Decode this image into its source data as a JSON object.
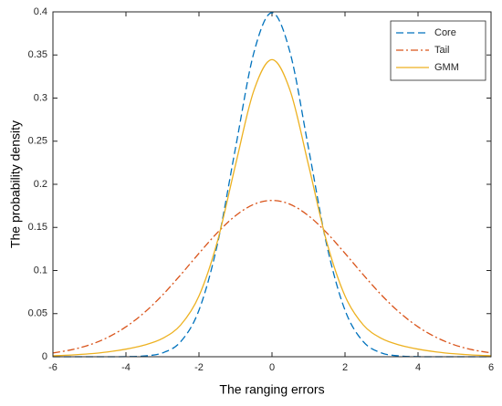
{
  "chart_data": {
    "type": "line",
    "xlabel": "The ranging errors",
    "ylabel": "The  probability density",
    "x": [
      -6,
      -5.5,
      -5,
      -4.5,
      -4,
      -3.5,
      -3,
      -2.5,
      -2,
      -1.5,
      -1,
      -0.5,
      0,
      0.5,
      1,
      1.5,
      2,
      2.5,
      3,
      3.5,
      4,
      4.5,
      5,
      5.5,
      6
    ],
    "series": [
      {
        "name": "Core",
        "color": "#0072bd",
        "linestyle": "dashed",
        "values": [
          0,
          0,
          0,
          0,
          0.0001,
          0.0009,
          0.0044,
          0.0175,
          0.054,
          0.1295,
          0.242,
          0.3521,
          0.399,
          0.3521,
          0.242,
          0.1295,
          0.054,
          0.0175,
          0.0044,
          0.0009,
          0.0001,
          0,
          0,
          0,
          0
        ]
      },
      {
        "name": "Tail",
        "color": "#d95319",
        "linestyle": "dashdot",
        "values": [
          0.0044,
          0.008,
          0.0137,
          0.0224,
          0.0347,
          0.0511,
          0.0715,
          0.0951,
          0.1199,
          0.1437,
          0.1635,
          0.1767,
          0.1813,
          0.1767,
          0.1635,
          0.1437,
          0.1199,
          0.0951,
          0.0715,
          0.0511,
          0.0347,
          0.0224,
          0.0137,
          0.008,
          0.0044
        ]
      },
      {
        "name": "GMM",
        "color": "#edb120",
        "linestyle": "solid",
        "values": [
          0.0011,
          0.002,
          0.0034,
          0.0056,
          0.0088,
          0.0135,
          0.0212,
          0.0369,
          0.0705,
          0.133,
          0.2224,
          0.3083,
          0.3446,
          0.3083,
          0.2224,
          0.133,
          0.0705,
          0.0369,
          0.0212,
          0.0135,
          0.0088,
          0.0056,
          0.0034,
          0.002,
          0.0011
        ]
      }
    ],
    "xlim": [
      -6,
      6
    ],
    "xticks": [
      -6,
      -4,
      -2,
      0,
      2,
      4,
      6
    ],
    "ylim": [
      0,
      0.4
    ],
    "yticks": [
      0,
      0.05,
      0.1,
      0.15,
      0.2,
      0.25,
      0.3,
      0.35,
      0.4
    ],
    "legend": "upper right",
    "grid": false
  }
}
